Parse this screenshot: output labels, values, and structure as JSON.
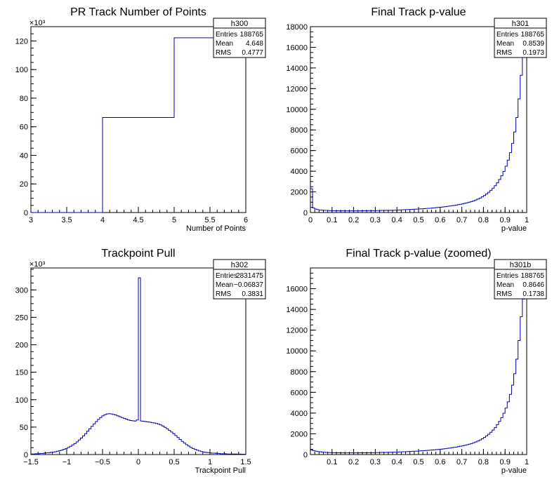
{
  "chart_data": [
    {
      "type": "histogram",
      "name": "h300",
      "title": "PR Track Number of Points",
      "xlabel": "Number of Points",
      "ylabel": "",
      "y_multiplier": "×10³",
      "xlim": [
        3,
        6
      ],
      "ylim": [
        0,
        130
      ],
      "xticks": [
        "3",
        "3.5",
        "4",
        "4.5",
        "5",
        "5.5",
        "6"
      ],
      "yticks": [
        "0",
        "20",
        "40",
        "60",
        "80",
        "100",
        "120"
      ],
      "bins": [
        {
          "x0": 3,
          "x1": 4,
          "value": 0
        },
        {
          "x0": 4,
          "x1": 5,
          "value": 66.5
        },
        {
          "x0": 5,
          "x1": 6,
          "value": 122.2
        }
      ],
      "stats": {
        "name": "h300",
        "entries": "188765",
        "mean": "4.648",
        "rms": "0.4777"
      },
      "stat_labels": {
        "entries": "Entries",
        "mean": "Mean",
        "rms": "RMS"
      }
    },
    {
      "type": "histogram",
      "name": "h301",
      "title": "Final Track p-value",
      "xlabel": "p-value",
      "ylabel": "",
      "xlim": [
        0,
        1
      ],
      "ylim": [
        0,
        18000
      ],
      "xticks": [
        "0",
        "0.1",
        "0.2",
        "0.3",
        "0.4",
        "0.5",
        "0.6",
        "0.7",
        "0.8",
        "0.9",
        "1"
      ],
      "yticks": [
        "0",
        "2000",
        "4000",
        "6000",
        "8000",
        "10000",
        "12000",
        "14000",
        "16000",
        "18000"
      ],
      "bin_width": 0.01,
      "x_start": 0,
      "values": [
        2300,
        450,
        330,
        280,
        250,
        230,
        210,
        200,
        190,
        180,
        175,
        170,
        168,
        165,
        163,
        162,
        160,
        160,
        158,
        158,
        160,
        160,
        162,
        165,
        168,
        170,
        172,
        175,
        178,
        180,
        185,
        190,
        195,
        200,
        205,
        210,
        215,
        220,
        225,
        230,
        240,
        250,
        260,
        270,
        280,
        290,
        300,
        310,
        320,
        330,
        345,
        360,
        375,
        390,
        405,
        420,
        440,
        460,
        480,
        500,
        520,
        545,
        570,
        600,
        630,
        660,
        690,
        720,
        760,
        800,
        840,
        890,
        940,
        1000,
        1060,
        1130,
        1210,
        1300,
        1400,
        1520,
        1650,
        1800,
        1960,
        2150,
        2360,
        2600,
        2880,
        3200,
        3560,
        3980,
        4480,
        5080,
        5800,
        6700,
        7800,
        9200,
        11000,
        13300,
        15100,
        17300
      ],
      "stats": {
        "name": "h301",
        "entries": "188765",
        "mean": "0.8539",
        "rms": "0.1973"
      },
      "stat_labels": {
        "entries": "Entries",
        "mean": "Mean",
        "rms": "RMS"
      }
    },
    {
      "type": "histogram",
      "name": "h302",
      "title": "Trackpoint Pull",
      "xlabel": "Trackpoint Pull",
      "ylabel": "",
      "y_multiplier": "×10³",
      "xlim": [
        -1.5,
        1.5
      ],
      "ylim": [
        0,
        340
      ],
      "xticks": [
        "−1.5",
        "−1",
        "−0.5",
        "0",
        "0.5",
        "1",
        "1.5"
      ],
      "yticks": [
        "0",
        "50",
        "100",
        "150",
        "200",
        "250",
        "300"
      ],
      "bin_width": 0.03,
      "x_start": -1.5,
      "values": [
        1,
        1,
        1.5,
        1.5,
        2,
        2,
        2.5,
        3,
        3,
        4,
        4.5,
        5,
        6,
        7,
        8,
        9.5,
        11,
        13,
        15,
        17.5,
        20,
        23,
        26.5,
        30,
        34,
        38,
        42.5,
        47,
        51.5,
        56,
        60,
        64,
        67.5,
        70.5,
        72.5,
        74,
        74.5,
        74,
        73,
        72,
        70.5,
        69,
        67.5,
        66,
        64.5,
        63,
        62,
        61.5,
        61,
        63,
        322,
        61,
        60.5,
        60,
        59.5,
        59,
        58,
        57.5,
        56.5,
        55.5,
        54,
        52,
        49.5,
        47,
        44,
        41,
        38,
        34.5,
        31,
        27.5,
        24,
        21,
        18,
        15.5,
        13,
        11,
        9.5,
        8,
        6.5,
        5.5,
        4.5,
        4,
        3.5,
        3,
        2.5,
        2.5,
        2,
        2,
        1.5,
        1.5,
        1.5,
        1,
        1,
        1,
        1,
        1,
        0.8,
        0.8,
        0.6,
        0.5
      ],
      "stats": {
        "name": "h302",
        "entries": "2831475",
        "mean": "−0.06837",
        "rms": "0.3831"
      },
      "stat_labels": {
        "entries": "Entries",
        "mean": "Mean",
        "rms": "RMS"
      }
    },
    {
      "type": "histogram",
      "name": "h301b",
      "title": "Final Track p-value (zoomed)",
      "xlabel": "p-value",
      "ylabel": "",
      "xlim": [
        0,
        1
      ],
      "ylim": [
        0,
        18000
      ],
      "xticks": [
        "0.1",
        "0.2",
        "0.3",
        "0.4",
        "0.5",
        "0.6",
        "0.7",
        "0.8",
        "0.9",
        "1"
      ],
      "yticks": [
        "0",
        "2000",
        "4000",
        "6000",
        "8000",
        "10000",
        "12000",
        "14000",
        "16000"
      ],
      "bin_width": 0.01,
      "x_start": 0,
      "values": [
        450,
        380,
        330,
        290,
        260,
        240,
        220,
        205,
        195,
        185,
        178,
        172,
        168,
        165,
        163,
        162,
        160,
        160,
        158,
        158,
        160,
        160,
        162,
        165,
        168,
        170,
        172,
        175,
        178,
        180,
        185,
        190,
        195,
        200,
        205,
        210,
        215,
        220,
        225,
        230,
        240,
        250,
        260,
        270,
        280,
        290,
        300,
        310,
        320,
        330,
        345,
        360,
        375,
        390,
        405,
        420,
        440,
        460,
        480,
        500,
        520,
        545,
        570,
        600,
        630,
        660,
        690,
        720,
        760,
        800,
        840,
        890,
        940,
        1000,
        1060,
        1130,
        1210,
        1300,
        1400,
        1520,
        1650,
        1800,
        1960,
        2150,
        2360,
        2600,
        2880,
        3200,
        3560,
        3980,
        4480,
        5080,
        5800,
        6700,
        7800,
        9200,
        11000,
        13300,
        15000,
        17300
      ],
      "stats": {
        "name": "h301b",
        "entries": "188765",
        "mean": "0.8646",
        "rms": "0.1738"
      },
      "stat_labels": {
        "entries": "Entries",
        "mean": "Mean",
        "rms": "RMS"
      }
    }
  ]
}
